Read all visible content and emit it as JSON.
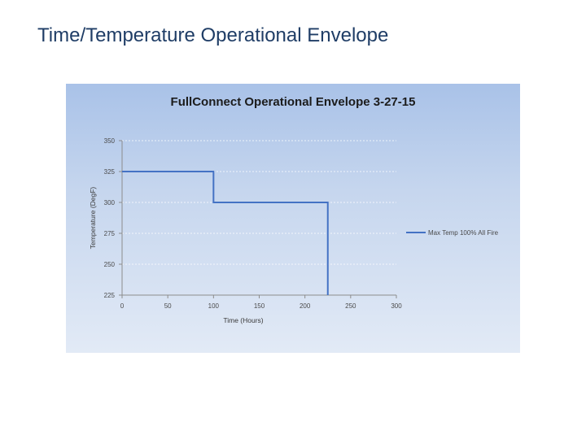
{
  "slide": {
    "title": "Time/Temperature Operational Envelope"
  },
  "colors": {
    "series_line": "#4472c4",
    "axis": "#8c8c8c",
    "gridline": "#ffffff"
  },
  "chart_data": {
    "type": "line",
    "title": "FullConnect Operational Envelope 3-27-15",
    "xlabel": "Time (Hours)",
    "ylabel": "Temperature (DegF)",
    "xlim": [
      0,
      300
    ],
    "ylim": [
      225,
      350
    ],
    "xticks": [
      0,
      50,
      100,
      150,
      200,
      250,
      300
    ],
    "yticks": [
      225,
      250,
      275,
      300,
      325,
      350
    ],
    "grid": true,
    "legend_position": "right",
    "series": [
      {
        "name": "Max Temp 100% All Fire",
        "x": [
          0,
          100,
          100,
          225,
          225
        ],
        "y": [
          325,
          325,
          300,
          300,
          225
        ]
      }
    ]
  }
}
